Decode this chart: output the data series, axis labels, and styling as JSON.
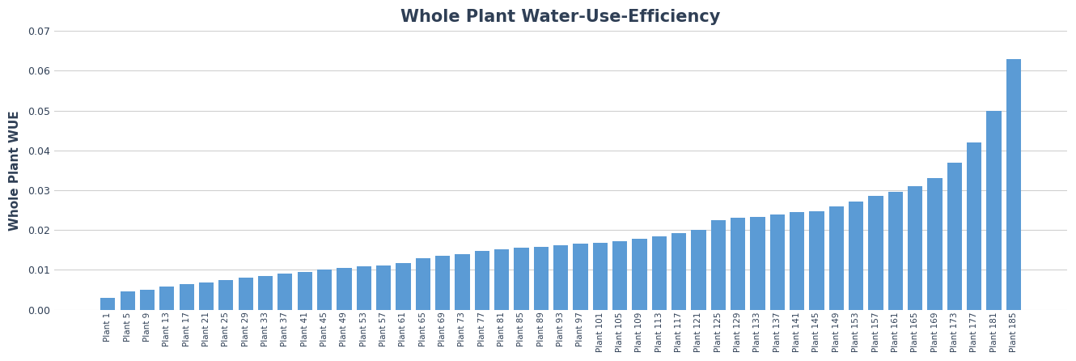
{
  "title": "Whole Plant Water-Use-Efficiency",
  "ylabel": "Whole Plant WUE",
  "bar_color": "#5b9bd5",
  "title_color": "#2f3f55",
  "label_color": "#2f3f55",
  "ylim": [
    0,
    0.07
  ],
  "yticks": [
    0,
    0.01,
    0.02,
    0.03,
    0.04,
    0.05,
    0.06,
    0.07
  ],
  "categories": [
    "Plant 1",
    "Plant 5",
    "Plant 9",
    "Plant 13",
    "Plant 17",
    "Plant 21",
    "Plant 25",
    "Plant 29",
    "Plant 33",
    "Plant 37",
    "Plant 41",
    "Plant 45",
    "Plant 49",
    "Plant 53",
    "Plant 57",
    "Plant 61",
    "Plant 65",
    "Plant 69",
    "Plant 73",
    "Plant 77",
    "Plant 81",
    "Plant 85",
    "Plant 89",
    "Plant 93",
    "Plant 97",
    "Plant 101",
    "Plant 105",
    "Plant 109",
    "Plant 113",
    "Plant 117",
    "Plant 121",
    "Plant 125",
    "Plant 129",
    "Plant 133",
    "Plant 137",
    "Plant 141",
    "Plant 145",
    "Plant 149",
    "Plant 153",
    "Plant 157",
    "Plant 161",
    "Plant 165",
    "Plant 169",
    "Plant 173",
    "Plant 177",
    "Plant 181",
    "Plant 185"
  ],
  "values": [
    0.003,
    0.0045,
    0.005,
    0.0058,
    0.0065,
    0.0068,
    0.0075,
    0.008,
    0.0085,
    0.009,
    0.0095,
    0.01,
    0.0105,
    0.0108,
    0.0112,
    0.0118,
    0.013,
    0.0135,
    0.014,
    0.0148,
    0.0152,
    0.0155,
    0.0158,
    0.0162,
    0.0165,
    0.0168,
    0.0172,
    0.0178,
    0.0185,
    0.0192,
    0.02,
    0.0225,
    0.023,
    0.0232,
    0.024,
    0.0245,
    0.0248,
    0.026,
    0.0272,
    0.0285,
    0.0295,
    0.031,
    0.033,
    0.037,
    0.042,
    0.05,
    0.063
  ],
  "title_fontsize": 15,
  "ylabel_fontsize": 11,
  "xtick_fontsize": 7.5,
  "ytick_fontsize": 9,
  "bar_width": 0.75,
  "figsize": [
    13.3,
    4.46
  ],
  "dpi": 100
}
